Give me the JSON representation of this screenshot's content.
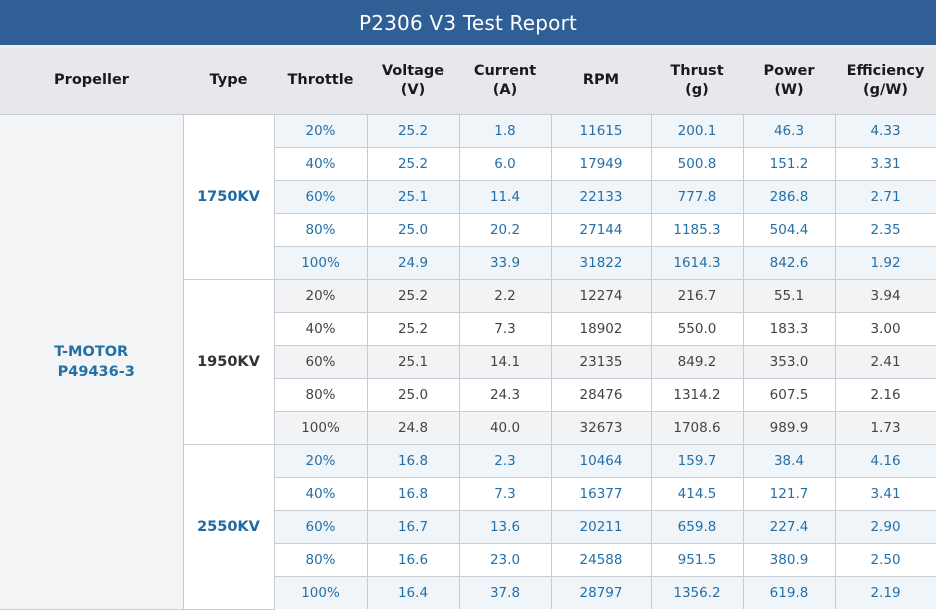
{
  "title": "P2306 V3 Test Report",
  "headers": {
    "propeller": "Propeller",
    "type": "Type",
    "throttle": "Throttle",
    "voltage": "Voltage",
    "voltage_unit": "(V)",
    "current": "Current",
    "current_unit": "(A)",
    "rpm": "RPM",
    "thrust": "Thrust",
    "thrust_unit": "(g)",
    "power": "Power",
    "power_unit": "(W)",
    "efficiency": "Efficiency",
    "efficiency_unit": "(g/W)"
  },
  "propeller": {
    "line1": "T-MOTOR",
    "line2": "P49436-3"
  },
  "colors": {
    "title_bar": "#305f96",
    "header_bg": "#e6e8ec",
    "blue_text": "#2470a6",
    "gray_text": "#444444"
  },
  "groups": [
    {
      "type": "1750KV",
      "style": "blue",
      "rows": [
        {
          "throttle": "20%",
          "voltage": "25.2",
          "current": "1.8",
          "rpm": "11615",
          "thrust": "200.1",
          "power": "46.3",
          "efficiency": "4.33"
        },
        {
          "throttle": "40%",
          "voltage": "25.2",
          "current": "6.0",
          "rpm": "17949",
          "thrust": "500.8",
          "power": "151.2",
          "efficiency": "3.31"
        },
        {
          "throttle": "60%",
          "voltage": "25.1",
          "current": "11.4",
          "rpm": "22133",
          "thrust": "777.8",
          "power": "286.8",
          "efficiency": "2.71"
        },
        {
          "throttle": "80%",
          "voltage": "25.0",
          "current": "20.2",
          "rpm": "27144",
          "thrust": "1185.3",
          "power": "504.4",
          "efficiency": "2.35"
        },
        {
          "throttle": "100%",
          "voltage": "24.9",
          "current": "33.9",
          "rpm": "31822",
          "thrust": "1614.3",
          "power": "842.6",
          "efficiency": "1.92"
        }
      ]
    },
    {
      "type": "1950KV",
      "style": "gray",
      "rows": [
        {
          "throttle": "20%",
          "voltage": "25.2",
          "current": "2.2",
          "rpm": "12274",
          "thrust": "216.7",
          "power": "55.1",
          "efficiency": "3.94"
        },
        {
          "throttle": "40%",
          "voltage": "25.2",
          "current": "7.3",
          "rpm": "18902",
          "thrust": "550.0",
          "power": "183.3",
          "efficiency": "3.00"
        },
        {
          "throttle": "60%",
          "voltage": "25.1",
          "current": "14.1",
          "rpm": "23135",
          "thrust": "849.2",
          "power": "353.0",
          "efficiency": "2.41"
        },
        {
          "throttle": "80%",
          "voltage": "25.0",
          "current": "24.3",
          "rpm": "28476",
          "thrust": "1314.2",
          "power": "607.5",
          "efficiency": "2.16"
        },
        {
          "throttle": "100%",
          "voltage": "24.8",
          "current": "40.0",
          "rpm": "32673",
          "thrust": "1708.6",
          "power": "989.9",
          "efficiency": "1.73"
        }
      ]
    },
    {
      "type": "2550KV",
      "style": "blue",
      "rows": [
        {
          "throttle": "20%",
          "voltage": "16.8",
          "current": "2.3",
          "rpm": "10464",
          "thrust": "159.7",
          "power": "38.4",
          "efficiency": "4.16"
        },
        {
          "throttle": "40%",
          "voltage": "16.8",
          "current": "7.3",
          "rpm": "16377",
          "thrust": "414.5",
          "power": "121.7",
          "efficiency": "3.41"
        },
        {
          "throttle": "60%",
          "voltage": "16.7",
          "current": "13.6",
          "rpm": "20211",
          "thrust": "659.8",
          "power": "227.4",
          "efficiency": "2.90"
        },
        {
          "throttle": "80%",
          "voltage": "16.6",
          "current": "23.0",
          "rpm": "24588",
          "thrust": "951.5",
          "power": "380.9",
          "efficiency": "2.50"
        },
        {
          "throttle": "100%",
          "voltage": "16.4",
          "current": "37.8",
          "rpm": "28797",
          "thrust": "1356.2",
          "power": "619.8",
          "efficiency": "2.19"
        }
      ]
    }
  ]
}
